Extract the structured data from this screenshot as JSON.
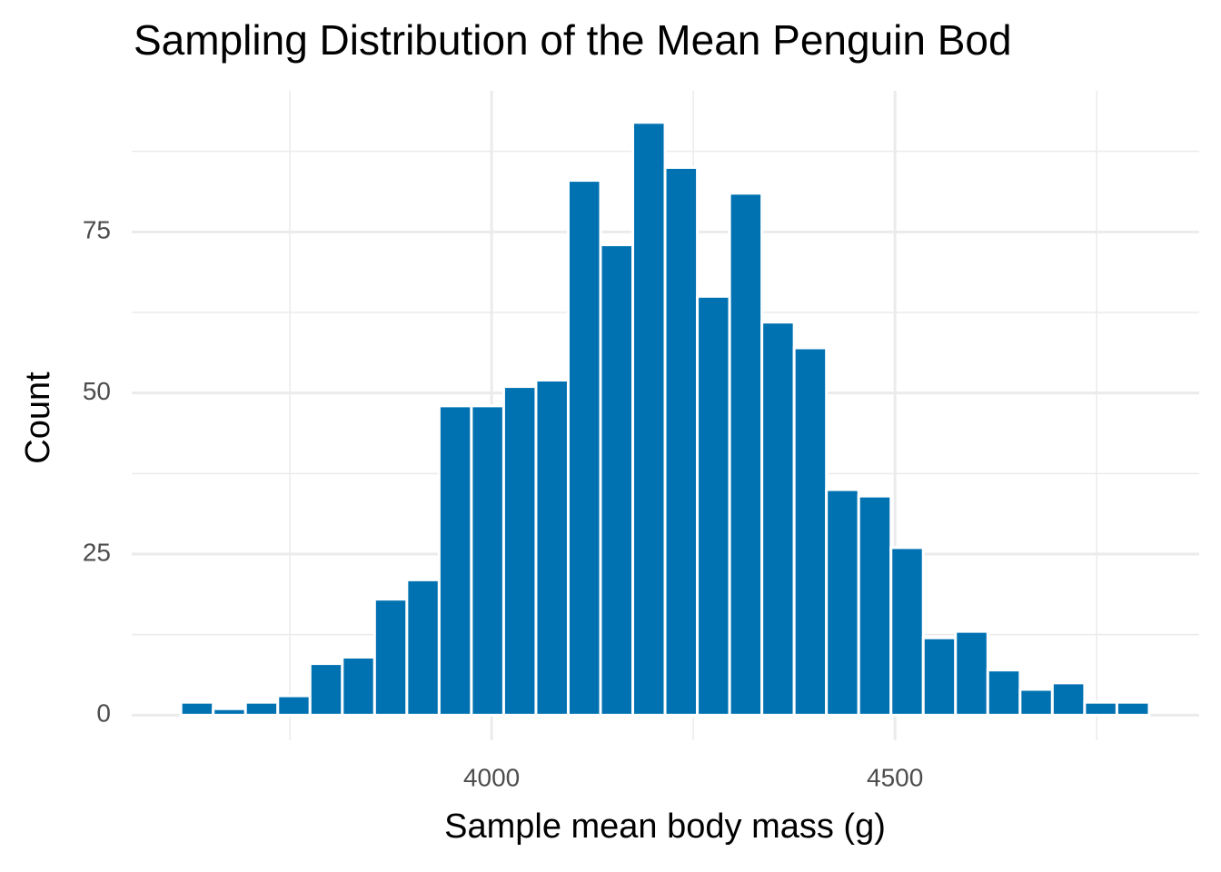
{
  "chart_data": {
    "type": "histogram",
    "title": "Sampling Distribution of the Mean Penguin Bod",
    "x_label": "Sample mean body mass (g)",
    "y_label": "Count",
    "bins": [
      3615,
      3655,
      3695,
      3735,
      3775,
      3815,
      3855,
      3895,
      3935,
      3975,
      4015,
      4055,
      4095,
      4135,
      4175,
      4215,
      4255,
      4295,
      4335,
      4375,
      4415,
      4455,
      4495,
      4535,
      4575,
      4615,
      4655,
      4695,
      4735,
      4775,
      4815
    ],
    "values": [
      2,
      1,
      2,
      3,
      8,
      9,
      18,
      21,
      48,
      48,
      51,
      52,
      83,
      73,
      92,
      85,
      65,
      81,
      61,
      57,
      35,
      34,
      26,
      12,
      13,
      7,
      4,
      5,
      2,
      2
    ],
    "color": "#0072b2",
    "xlim": [
      3554,
      4877
    ],
    "xticks": [
      4000,
      4500
    ],
    "xminor": [
      3750,
      4250,
      4750
    ],
    "ylim": [
      -3.9,
      96.9
    ],
    "yticks": [
      0,
      25,
      50,
      75
    ],
    "yminor": [
      12.5,
      37.5,
      62.5,
      87.5
    ],
    "grid": true
  }
}
